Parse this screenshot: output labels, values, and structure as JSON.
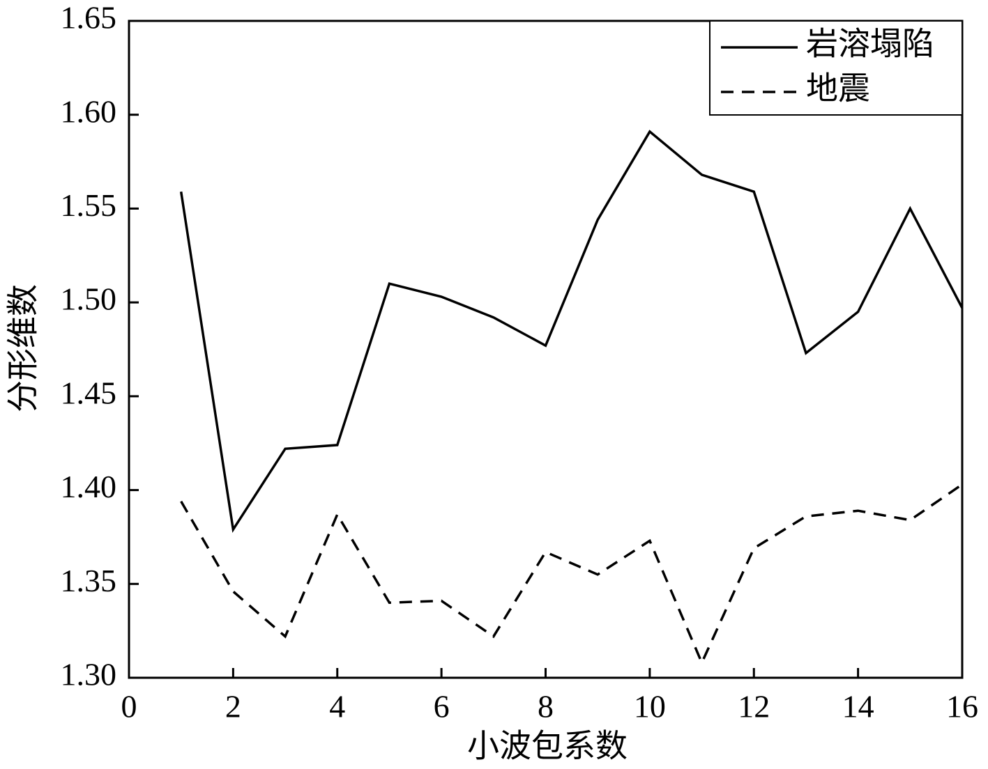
{
  "chart_data": {
    "type": "line",
    "xlabel": "小波包系数",
    "ylabel": "分形维数",
    "x": [
      1,
      2,
      3,
      4,
      5,
      6,
      7,
      8,
      9,
      10,
      11,
      12,
      13,
      14,
      15,
      16
    ],
    "series": [
      {
        "name": "岩溶塌陷",
        "color": "#000000",
        "linestyle": "solid",
        "values": [
          1.559,
          1.379,
          1.422,
          1.424,
          1.51,
          1.503,
          1.492,
          1.477,
          1.544,
          1.591,
          1.568,
          1.559,
          1.473,
          1.495,
          1.55,
          1.497
        ]
      },
      {
        "name": "地震",
        "color": "#000000",
        "linestyle": "dashed",
        "values": [
          1.394,
          1.346,
          1.322,
          1.387,
          1.34,
          1.341,
          1.322,
          1.367,
          1.355,
          1.373,
          1.308,
          1.369,
          1.386,
          1.389,
          1.384,
          1.403
        ]
      }
    ],
    "xlim": [
      0,
      16
    ],
    "xticks": [
      0,
      2,
      4,
      6,
      8,
      10,
      12,
      14,
      16
    ],
    "ylim": [
      1.3,
      1.65
    ],
    "yticks": [
      {
        "value": 1.3,
        "label": "1.30"
      },
      {
        "value": 1.35,
        "label": "1.35"
      },
      {
        "value": 1.4,
        "label": "1.40"
      },
      {
        "value": 1.45,
        "label": "1.45"
      },
      {
        "value": 1.5,
        "label": "1.50"
      },
      {
        "value": 1.55,
        "label": "1.55"
      },
      {
        "value": 1.6,
        "label": "1.60"
      },
      {
        "value": 1.65,
        "label": "1.65"
      }
    ],
    "grid": false,
    "legend": "upper right"
  }
}
